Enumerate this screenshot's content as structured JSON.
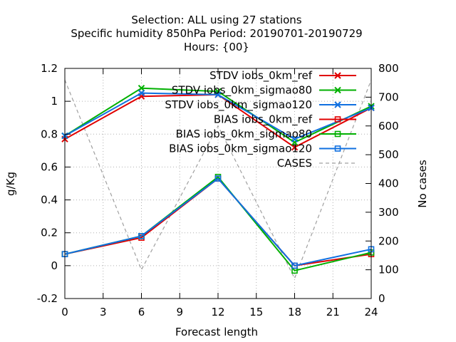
{
  "chart_data": {
    "type": "line",
    "title_lines": [
      "Selection: ALL using    27 stations",
      "Specific humidity 850hPa   Period: 20190701-20190729",
      "Hours: {00}"
    ],
    "xlabel": "Forecast length",
    "ylabel": "g/Kg",
    "y2label": "No cases",
    "xlim": [
      0,
      24
    ],
    "ylim": [
      -0.2,
      1.2
    ],
    "y2lim": [
      0,
      800
    ],
    "xticks": [
      0,
      3,
      6,
      9,
      12,
      15,
      18,
      21,
      24
    ],
    "yticks": [
      -0.2,
      0,
      0.2,
      0.4,
      0.6,
      0.8,
      1,
      1.2
    ],
    "ytick_labels": [
      "-0.2",
      "0",
      "0.2",
      "0.4",
      "0.6",
      "0.8",
      "1",
      "1.2"
    ],
    "y2ticks": [
      0,
      100,
      200,
      300,
      400,
      500,
      600,
      700,
      800
    ],
    "grid": true,
    "legend_position": "top-right",
    "series": [
      {
        "name": "STDV iobs_0km_ref",
        "axis": "y",
        "color": "#e00000",
        "marker": "x",
        "dash": false,
        "x": [
          0,
          6,
          12,
          18,
          24
        ],
        "values": [
          0.77,
          1.03,
          1.04,
          0.72,
          0.96
        ]
      },
      {
        "name": "STDV iobs_0km_sigmao80",
        "axis": "y",
        "color": "#00b000",
        "marker": "x",
        "dash": false,
        "x": [
          0,
          6,
          12,
          18,
          24
        ],
        "values": [
          0.79,
          1.08,
          1.06,
          0.75,
          0.97
        ]
      },
      {
        "name": "STDV iobs_0km_sigmao120",
        "axis": "y",
        "color": "#1070e0",
        "marker": "x",
        "dash": false,
        "x": [
          0,
          6,
          12,
          18,
          24
        ],
        "values": [
          0.79,
          1.05,
          1.04,
          0.77,
          0.96
        ]
      },
      {
        "name": "BIAS iobs_0km_ref",
        "axis": "y",
        "color": "#e00000",
        "marker": "square",
        "dash": false,
        "x": [
          0,
          6,
          12,
          18,
          24
        ],
        "values": [
          0.07,
          0.17,
          0.53,
          0.0,
          0.07
        ]
      },
      {
        "name": "BIAS iobs_0km_sigmao80",
        "axis": "y",
        "color": "#00b000",
        "marker": "square",
        "dash": false,
        "x": [
          0,
          6,
          12,
          18,
          24
        ],
        "values": [
          0.07,
          0.18,
          0.54,
          -0.03,
          0.08
        ]
      },
      {
        "name": "BIAS iobs_0km_sigmao120",
        "axis": "y",
        "color": "#1070e0",
        "marker": "square",
        "dash": false,
        "x": [
          0,
          6,
          12,
          18,
          24
        ],
        "values": [
          0.07,
          0.18,
          0.53,
          0.0,
          0.1
        ]
      },
      {
        "name": "CASES",
        "axis": "y2",
        "color": "#a0a0a0",
        "marker": "none",
        "dash": true,
        "x": [
          0,
          6,
          12,
          18,
          24
        ],
        "values": [
          760,
          100,
          600,
          70,
          760
        ]
      }
    ]
  }
}
